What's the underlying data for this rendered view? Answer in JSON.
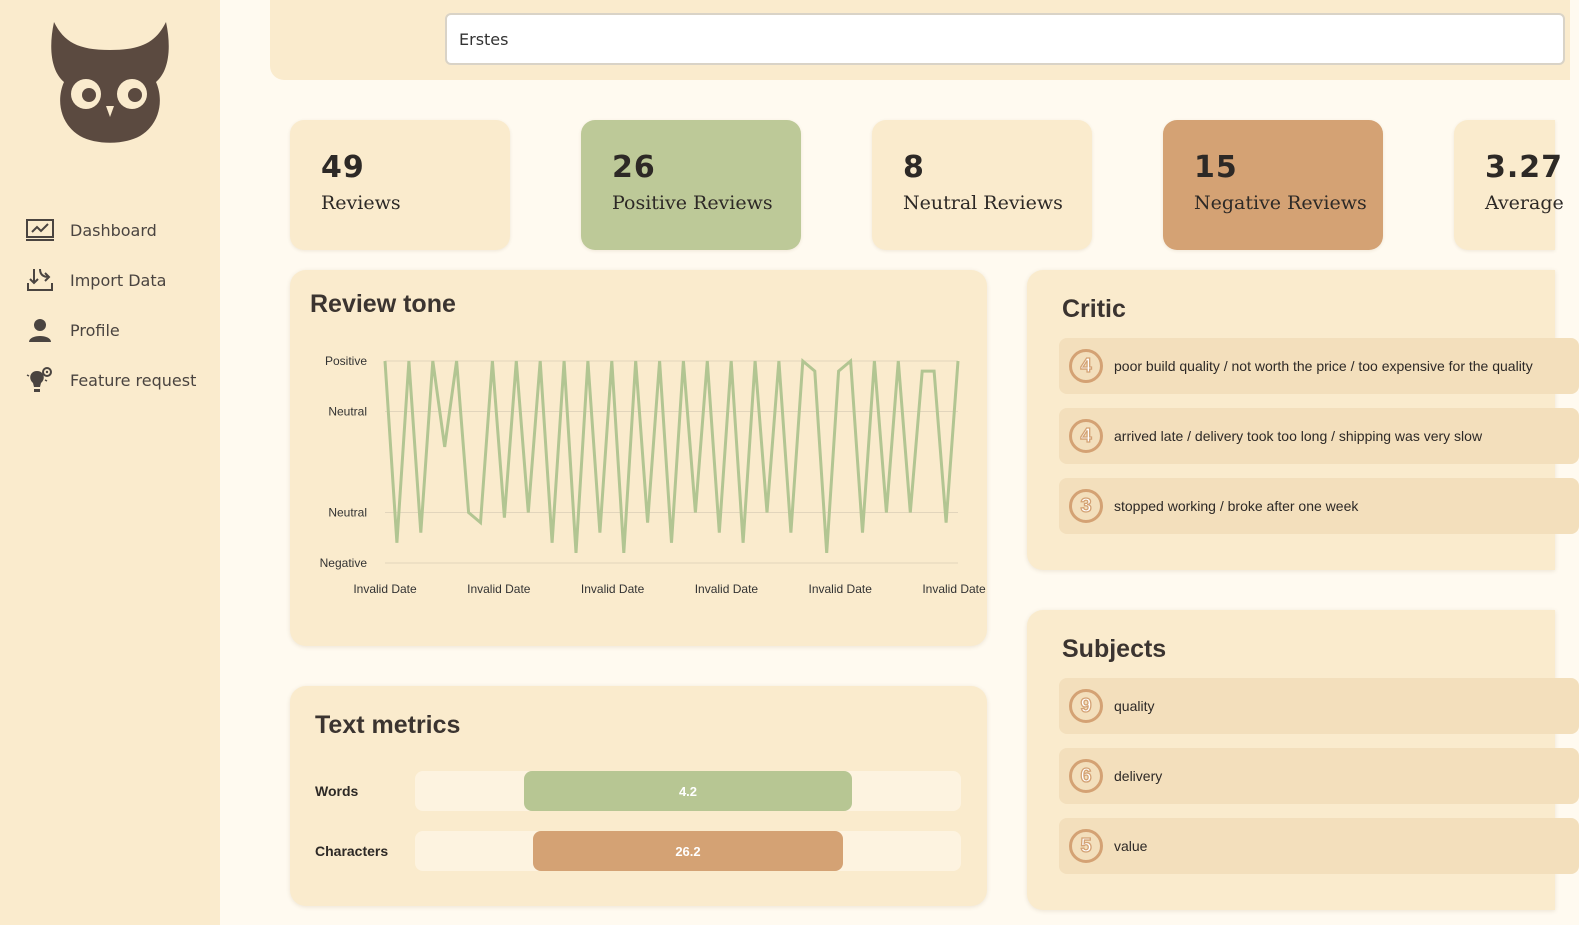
{
  "search": {
    "value": "Erstes"
  },
  "sidebar": {
    "items": [
      {
        "label": "Dashboard",
        "icon": "chart-monitor-icon"
      },
      {
        "label": "Import Data",
        "icon": "import-arrows-icon"
      },
      {
        "label": "Profile",
        "icon": "user-icon"
      },
      {
        "label": "Feature request",
        "icon": "lightbulb-gear-icon"
      }
    ]
  },
  "stats": [
    {
      "value": "49",
      "label": "Reviews"
    },
    {
      "value": "26",
      "label": "Positive Reviews"
    },
    {
      "value": "8",
      "label": "Neutral Reviews"
    },
    {
      "value": "15",
      "label": "Negative Reviews"
    },
    {
      "value": "3.27",
      "label": "Average"
    }
  ],
  "review_tone": {
    "title": "Review tone",
    "chart_data": {
      "type": "line",
      "title": "Review tone",
      "y_ticks": [
        "Positive",
        "Neutral",
        "Neutral",
        "Negative"
      ],
      "x_ticks": [
        "Invalid Date",
        "Invalid Date",
        "Invalid Date",
        "Invalid Date",
        "Invalid Date",
        "Invalid Date"
      ],
      "ylim": [
        0,
        4
      ],
      "color": "#b2c592",
      "values": [
        4.0,
        0.4,
        4.0,
        0.6,
        4.0,
        2.3,
        4.0,
        1.0,
        0.8,
        4.0,
        0.9,
        4.0,
        1.0,
        4.0,
        0.4,
        4.0,
        0.2,
        4.0,
        0.6,
        4.0,
        0.2,
        4.0,
        0.8,
        4.0,
        0.4,
        4.0,
        1.0,
        4.0,
        0.6,
        4.0,
        0.4,
        4.0,
        1.0,
        4.0,
        0.6,
        4.0,
        3.8,
        0.2,
        3.8,
        4.0,
        0.6,
        4.0,
        1.0,
        4.0,
        1.0,
        3.8,
        3.8,
        0.8,
        4.0
      ]
    }
  },
  "text_metrics": {
    "title": "Text metrics",
    "rows": [
      {
        "label": "Words",
        "value": "4.2",
        "start": 0.2,
        "end": 0.8,
        "color": "#b7c693"
      },
      {
        "label": "Characters",
        "value": "26.2",
        "start": 0.217,
        "end": 0.783,
        "color": "#d4a274"
      }
    ]
  },
  "critic": {
    "title": "Critic",
    "items": [
      {
        "count": "4",
        "text": "poor build quality / not worth the price / too expensive for the quality"
      },
      {
        "count": "4",
        "text": "arrived late / delivery took too long / shipping was very slow"
      },
      {
        "count": "3",
        "text": "stopped working / broke after one week"
      }
    ]
  },
  "subjects": {
    "title": "Subjects",
    "items": [
      {
        "count": "9",
        "text": "quality"
      },
      {
        "count": "6",
        "text": "delivery"
      },
      {
        "count": "5",
        "text": "value"
      }
    ]
  }
}
